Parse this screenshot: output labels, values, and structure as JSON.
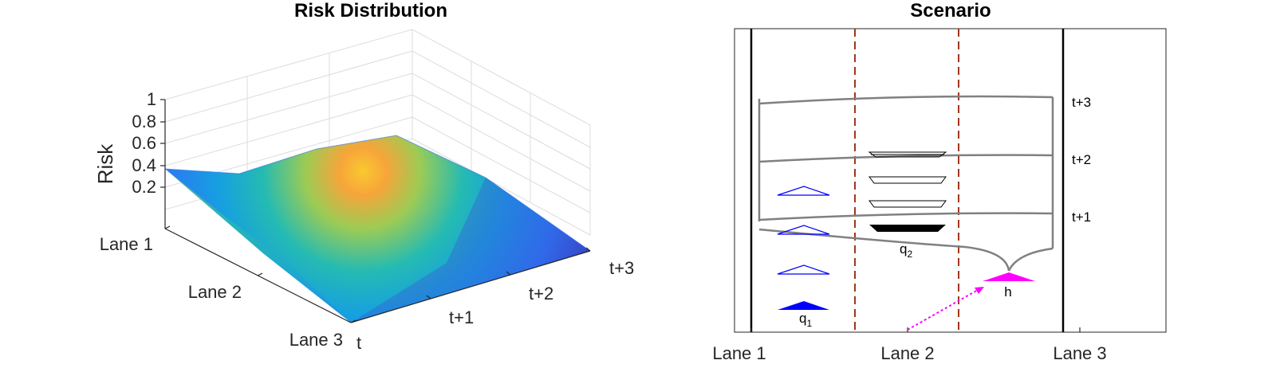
{
  "chart_data": [
    {
      "type": "surface",
      "title": "Risk Distribution",
      "zlabel": "Risk",
      "z_ticks": [
        "0.2",
        "0.4",
        "0.6",
        "0.8",
        "1"
      ],
      "zlim": [
        0,
        1
      ],
      "lanes": [
        "Lane 1",
        "Lane 2",
        "Lane 3"
      ],
      "times": [
        "t",
        "t+1",
        "t+2",
        "t+3"
      ],
      "risk": [
        [
          0.44,
          0.28,
          0.04,
          0.0
        ],
        [
          0.34,
          0.7,
          0.4,
          0.0
        ],
        [
          0.25,
          0.46,
          0.18,
          0.0
        ]
      ],
      "colormap": [
        "#3e26a8",
        "#2e7cf6",
        "#18b1cd",
        "#60c96e",
        "#d5c136",
        "#f9c92f"
      ]
    },
    {
      "type": "scenario",
      "title": "Scenario",
      "x_ticks": [
        "Lane 1",
        "Lane 2",
        "Lane 3"
      ],
      "horizons": [
        "t+3",
        "t+2",
        "t+1"
      ],
      "agents": [
        "q1",
        "q2",
        "h"
      ],
      "colors": {
        "ego": "#ff00ff",
        "q1": "#0000ff",
        "q2": "#000000",
        "divider": "#a0361f",
        "boundary": "#000000",
        "horizon": "#808080"
      }
    }
  ]
}
